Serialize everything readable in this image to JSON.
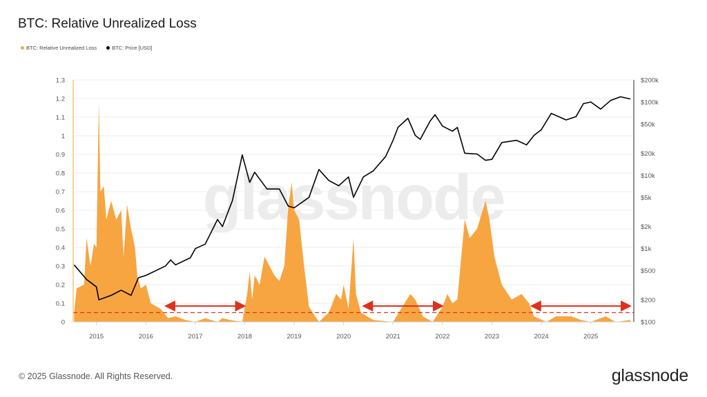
{
  "header": {
    "title": "BTC: Relative Unrealized Loss"
  },
  "footer": {
    "copyright": "© 2025 Glassnode. All Rights Reserved.",
    "logo": "glassnode",
    "watermark": "glassnode"
  },
  "colors": {
    "loss": "#f7a541",
    "price": "#000000",
    "threshold": "#e0301e",
    "grid": "#eeeeee"
  },
  "chart_data": {
    "type": "area",
    "title": "BTC: Relative Unrealized Loss",
    "legend": {
      "placement": "top-left",
      "entries": [
        "BTC: Relative Unrealized Loss",
        "BTC: Price [USD]"
      ]
    },
    "grid": true,
    "x_ticks": [
      "2015",
      "2016",
      "2017",
      "2018",
      "2019",
      "2020",
      "2021",
      "2022",
      "2023",
      "2024",
      "2025"
    ],
    "xlim": [
      2014.53,
      2025.87
    ],
    "y_left": {
      "ticks": [
        "0",
        "0.1",
        "0.2",
        "0.3",
        "0.4",
        "0.5",
        "0.6",
        "0.7",
        "0.8",
        "0.9",
        "1",
        "1.1",
        "1.2",
        "1.3"
      ],
      "ylim": [
        0,
        1.3
      ]
    },
    "y_right": {
      "scale": "log",
      "ticks": [
        {
          "v": 100,
          "label": "$100"
        },
        {
          "v": 200,
          "label": "$200"
        },
        {
          "v": 500,
          "label": "$500"
        },
        {
          "v": 1000,
          "label": "$1k"
        },
        {
          "v": 2000,
          "label": "$2k"
        },
        {
          "v": 5000,
          "label": "$5k"
        },
        {
          "v": 10000,
          "label": "$10k"
        },
        {
          "v": 20000,
          "label": "$20k"
        },
        {
          "v": 50000,
          "label": "$50k"
        },
        {
          "v": 100000,
          "label": "$100k"
        },
        {
          "v": 200000,
          "label": "$200k"
        }
      ],
      "ylim": [
        100,
        200000
      ]
    },
    "threshold": 0.05,
    "ranges": [
      [
        2016.4,
        2018.0
      ],
      [
        2020.4,
        2022.0
      ],
      [
        2023.8,
        2025.8
      ]
    ],
    "series": [
      {
        "name": "BTC: Relative Unrealized Loss",
        "axis": "left",
        "points": [
          [
            2014.55,
            0.05
          ],
          [
            2014.6,
            0.18
          ],
          [
            2014.75,
            0.2
          ],
          [
            2014.8,
            0.45
          ],
          [
            2014.88,
            0.3
          ],
          [
            2014.95,
            0.42
          ],
          [
            2015.0,
            0.4
          ],
          [
            2015.03,
            0.88
          ],
          [
            2015.05,
            1.18
          ],
          [
            2015.08,
            0.7
          ],
          [
            2015.15,
            0.73
          ],
          [
            2015.2,
            0.55
          ],
          [
            2015.3,
            0.65
          ],
          [
            2015.4,
            0.55
          ],
          [
            2015.5,
            0.6
          ],
          [
            2015.55,
            0.35
          ],
          [
            2015.62,
            0.63
          ],
          [
            2015.7,
            0.5
          ],
          [
            2015.78,
            0.4
          ],
          [
            2015.83,
            0.24
          ],
          [
            2015.9,
            0.18
          ],
          [
            2016.0,
            0.2
          ],
          [
            2016.1,
            0.1
          ],
          [
            2016.3,
            0.07
          ],
          [
            2016.45,
            0.02
          ],
          [
            2016.6,
            0.03
          ],
          [
            2016.8,
            0.01
          ],
          [
            2017.0,
            0.0
          ],
          [
            2017.2,
            0.02
          ],
          [
            2017.45,
            0.0
          ],
          [
            2017.55,
            0.02
          ],
          [
            2017.7,
            0.01
          ],
          [
            2017.95,
            0.0
          ],
          [
            2018.05,
            0.15
          ],
          [
            2018.1,
            0.27
          ],
          [
            2018.15,
            0.12
          ],
          [
            2018.2,
            0.25
          ],
          [
            2018.3,
            0.2
          ],
          [
            2018.4,
            0.35
          ],
          [
            2018.5,
            0.3
          ],
          [
            2018.6,
            0.25
          ],
          [
            2018.7,
            0.22
          ],
          [
            2018.8,
            0.3
          ],
          [
            2018.88,
            0.62
          ],
          [
            2018.95,
            0.75
          ],
          [
            2019.0,
            0.6
          ],
          [
            2019.1,
            0.55
          ],
          [
            2019.2,
            0.3
          ],
          [
            2019.3,
            0.08
          ],
          [
            2019.5,
            0.0
          ],
          [
            2019.7,
            0.05
          ],
          [
            2019.85,
            0.15
          ],
          [
            2019.95,
            0.12
          ],
          [
            2020.0,
            0.2
          ],
          [
            2020.1,
            0.07
          ],
          [
            2020.2,
            0.45
          ],
          [
            2020.25,
            0.15
          ],
          [
            2020.35,
            0.05
          ],
          [
            2020.6,
            0.01
          ],
          [
            2021.0,
            0.0
          ],
          [
            2021.35,
            0.15
          ],
          [
            2021.45,
            0.12
          ],
          [
            2021.6,
            0.03
          ],
          [
            2021.8,
            0.0
          ],
          [
            2022.0,
            0.08
          ],
          [
            2022.1,
            0.15
          ],
          [
            2022.2,
            0.1
          ],
          [
            2022.3,
            0.12
          ],
          [
            2022.45,
            0.55
          ],
          [
            2022.55,
            0.45
          ],
          [
            2022.7,
            0.5
          ],
          [
            2022.87,
            0.65
          ],
          [
            2022.95,
            0.55
          ],
          [
            2023.05,
            0.35
          ],
          [
            2023.2,
            0.2
          ],
          [
            2023.4,
            0.12
          ],
          [
            2023.6,
            0.15
          ],
          [
            2023.75,
            0.1
          ],
          [
            2023.85,
            0.03
          ],
          [
            2024.1,
            0.0
          ],
          [
            2024.3,
            0.03
          ],
          [
            2024.6,
            0.03
          ],
          [
            2024.8,
            0.01
          ],
          [
            2025.0,
            0.0
          ],
          [
            2025.3,
            0.03
          ],
          [
            2025.5,
            0.0
          ],
          [
            2025.8,
            0.01
          ]
        ]
      },
      {
        "name": "BTC: Price [USD]",
        "axis": "right",
        "points": [
          [
            2014.55,
            600
          ],
          [
            2014.8,
            380
          ],
          [
            2015.0,
            300
          ],
          [
            2015.05,
            200
          ],
          [
            2015.3,
            230
          ],
          [
            2015.5,
            270
          ],
          [
            2015.7,
            230
          ],
          [
            2015.85,
            400
          ],
          [
            2016.0,
            430
          ],
          [
            2016.4,
            580
          ],
          [
            2016.5,
            700
          ],
          [
            2016.6,
            600
          ],
          [
            2016.9,
            750
          ],
          [
            2017.0,
            1000
          ],
          [
            2017.2,
            1150
          ],
          [
            2017.45,
            2500
          ],
          [
            2017.55,
            2000
          ],
          [
            2017.75,
            4500
          ],
          [
            2017.95,
            19000
          ],
          [
            2018.1,
            8000
          ],
          [
            2018.2,
            11000
          ],
          [
            2018.45,
            6500
          ],
          [
            2018.7,
            6500
          ],
          [
            2018.88,
            3800
          ],
          [
            2019.0,
            3600
          ],
          [
            2019.3,
            5000
          ],
          [
            2019.5,
            12000
          ],
          [
            2019.7,
            8500
          ],
          [
            2019.9,
            7200
          ],
          [
            2020.1,
            9500
          ],
          [
            2020.2,
            5000
          ],
          [
            2020.4,
            9500
          ],
          [
            2020.6,
            11500
          ],
          [
            2020.85,
            18000
          ],
          [
            2021.0,
            30000
          ],
          [
            2021.1,
            45000
          ],
          [
            2021.3,
            60000
          ],
          [
            2021.45,
            35000
          ],
          [
            2021.55,
            31000
          ],
          [
            2021.75,
            55000
          ],
          [
            2021.85,
            67000
          ],
          [
            2022.0,
            47000
          ],
          [
            2022.2,
            40000
          ],
          [
            2022.3,
            45000
          ],
          [
            2022.45,
            20000
          ],
          [
            2022.7,
            19500
          ],
          [
            2022.87,
            16000
          ],
          [
            2023.0,
            16500
          ],
          [
            2023.2,
            28000
          ],
          [
            2023.5,
            30000
          ],
          [
            2023.7,
            26000
          ],
          [
            2023.85,
            35000
          ],
          [
            2024.0,
            42000
          ],
          [
            2024.2,
            70000
          ],
          [
            2024.5,
            57000
          ],
          [
            2024.7,
            63000
          ],
          [
            2024.85,
            95000
          ],
          [
            2025.0,
            100000
          ],
          [
            2025.2,
            80000
          ],
          [
            2025.4,
            105000
          ],
          [
            2025.6,
            118000
          ],
          [
            2025.8,
            110000
          ]
        ]
      }
    ]
  }
}
